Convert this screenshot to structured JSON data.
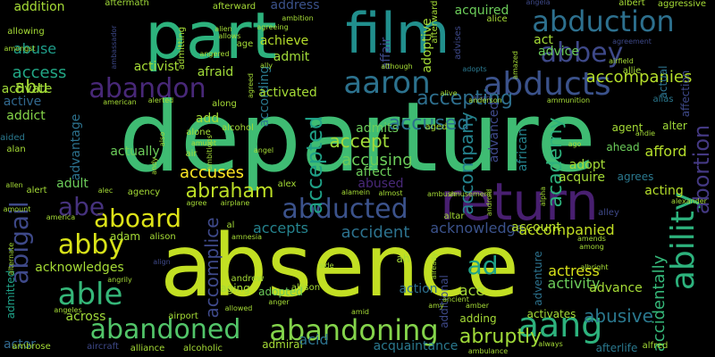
{
  "words": [
    {
      "text": "departure",
      "color": "#3fbc73"
    },
    {
      "text": "absence",
      "color": "#c2df23"
    },
    {
      "text": "film",
      "color": "#218f8d"
    },
    {
      "text": "part",
      "color": "#2db27d"
    },
    {
      "text": "return",
      "color": "#481f70"
    },
    {
      "text": "abduction",
      "color": "#2d708e"
    },
    {
      "text": "ability",
      "color": "#2db27d"
    },
    {
      "text": "abducts",
      "color": "#3b528b"
    },
    {
      "text": "abandon",
      "color": "#482878"
    },
    {
      "text": "abandoning",
      "color": "#84d44b"
    },
    {
      "text": "abandoned",
      "color": "#52c569"
    },
    {
      "text": "aaron",
      "color": "#2c728e"
    },
    {
      "text": "abbey",
      "color": "#3e4989"
    },
    {
      "text": "abducted",
      "color": "#3b528b"
    },
    {
      "text": "aang",
      "color": "#2db27d"
    },
    {
      "text": "abby",
      "color": "#d8e219"
    },
    {
      "text": "able",
      "color": "#35b779"
    },
    {
      "text": "abortion",
      "color": "#443983"
    },
    {
      "text": "abigail",
      "color": "#3e4989"
    },
    {
      "text": "aboard",
      "color": "#dde318"
    },
    {
      "text": "abe",
      "color": "#46327e"
    },
    {
      "text": "abraham",
      "color": "#bddf26"
    },
    {
      "text": "accepted",
      "color": "#1fa187"
    },
    {
      "text": "accept",
      "color": "#a0da39"
    },
    {
      "text": "accusing",
      "color": "#6ccd5a"
    },
    {
      "text": "accused",
      "color": "#2c728e"
    },
    {
      "text": "accepting",
      "color": "#2e6f8e"
    },
    {
      "text": "academy",
      "color": "#2db27d"
    },
    {
      "text": "accompany",
      "color": "#25838e"
    },
    {
      "text": "accompanies",
      "color": "#b5de2b"
    },
    {
      "text": "abuse",
      "color": "#1e9c89"
    },
    {
      "text": "access",
      "color": "#22a785"
    },
    {
      "text": "abu",
      "color": "#a5db36"
    },
    {
      "text": "abruptly",
      "color": "#a0da39"
    },
    {
      "text": "abusive",
      "color": "#2a788e"
    },
    {
      "text": "accidentally",
      "color": "#35b779"
    },
    {
      "text": "acquaintance",
      "color": "#2a788e"
    },
    {
      "text": "accomplice",
      "color": "#3e4989"
    },
    {
      "text": "acknowledge",
      "color": "#3b528b"
    },
    {
      "text": "accompanied",
      "color": "#c2df23"
    },
    {
      "text": "account",
      "color": "#b5de2b"
    },
    {
      "text": "accident",
      "color": "#2c728e"
    },
    {
      "text": "accepts",
      "color": "#25838e"
    },
    {
      "text": "abused",
      "color": "#482878"
    },
    {
      "text": "accuses",
      "color": "#fde725"
    },
    {
      "text": "actress",
      "color": "#d8e219"
    },
    {
      "text": "activity",
      "color": "#6ccd5a"
    },
    {
      "text": "advance",
      "color": "#a5db36"
    },
    {
      "text": "action",
      "color": "#2e6f8e"
    },
    {
      "text": "ace",
      "color": "#a5db36"
    },
    {
      "text": "ad",
      "color": "#1fa187"
    },
    {
      "text": "act",
      "color": "#a5db36"
    },
    {
      "text": "advice",
      "color": "#6ccd5a"
    },
    {
      "text": "addition",
      "color": "#a5db36"
    },
    {
      "text": "address",
      "color": "#3b528b"
    },
    {
      "text": "achieve",
      "color": "#b5de2b"
    },
    {
      "text": "admit",
      "color": "#a0da39"
    },
    {
      "text": "activate",
      "color": "#a0da39"
    },
    {
      "text": "active",
      "color": "#31688e"
    },
    {
      "text": "addict",
      "color": "#86d549"
    },
    {
      "text": "activist",
      "color": "#a5db36"
    },
    {
      "text": "afraid",
      "color": "#a0da39"
    },
    {
      "text": "according",
      "color": "#2a788e"
    },
    {
      "text": "activated",
      "color": "#a5db36"
    },
    {
      "text": "acquired",
      "color": "#6ccd5a"
    },
    {
      "text": "adoptive",
      "color": "#a5db36"
    },
    {
      "text": "affair",
      "color": "#3e4989"
    },
    {
      "text": "affect",
      "color": "#6ccd5a"
    },
    {
      "text": "adopt",
      "color": "#a5db36"
    },
    {
      "text": "acquire",
      "color": "#a5db36"
    },
    {
      "text": "afford",
      "color": "#b5de2b"
    },
    {
      "text": "acting",
      "color": "#b5de2b"
    },
    {
      "text": "adult",
      "color": "#6ccd5a"
    },
    {
      "text": "actually",
      "color": "#6ccd5a"
    },
    {
      "text": "advantage",
      "color": "#2c728e"
    },
    {
      "text": "add",
      "color": "#a5db36"
    },
    {
      "text": "admits",
      "color": "#6ccd5a"
    },
    {
      "text": "advanced",
      "color": "#3e4989"
    },
    {
      "text": "african",
      "color": "#25838e"
    },
    {
      "text": "agent",
      "color": "#a5db36"
    },
    {
      "text": "alter",
      "color": "#a0da39"
    },
    {
      "text": "ahead",
      "color": "#6ccd5a"
    },
    {
      "text": "agrees",
      "color": "#2a788e"
    },
    {
      "text": "adam",
      "color": "#a5db36"
    },
    {
      "text": "acknowledges",
      "color": "#a5db36"
    },
    {
      "text": "across",
      "color": "#a0da39"
    },
    {
      "text": "actor",
      "color": "#31688e"
    },
    {
      "text": "adopted",
      "color": "#6ccd5a"
    },
    {
      "text": "admiral",
      "color": "#a5db36"
    },
    {
      "text": "acid",
      "color": "#2c728e"
    },
    {
      "text": "adding",
      "color": "#a5db36"
    },
    {
      "text": "activates",
      "color": "#a5db36"
    },
    {
      "text": "afterlife",
      "color": "#2a788e"
    },
    {
      "text": "adventure",
      "color": "#2c728e"
    },
    {
      "text": "additional",
      "color": "#3e4989"
    },
    {
      "text": "ah",
      "color": "#a5db36"
    },
    {
      "text": "aging",
      "color": "#a5db36"
    },
    {
      "text": "andrew",
      "color": "#a5db36"
    },
    {
      "text": "admitted",
      "color": "#1fa187"
    },
    {
      "text": "aftermath",
      "color": "#a0da39"
    },
    {
      "text": "afterward",
      "color": "#a5db36"
    },
    {
      "text": "ambition",
      "color": "#a5db36"
    },
    {
      "text": "afterwards",
      "color": "#a5db36"
    },
    {
      "text": "advises",
      "color": "#3e4989"
    },
    {
      "text": "alice",
      "color": "#a5db36"
    },
    {
      "text": "angela",
      "color": "#3e4989"
    },
    {
      "text": "albert",
      "color": "#a5db36"
    },
    {
      "text": "aggressive",
      "color": "#a5db36"
    },
    {
      "text": "allowing",
      "color": "#a5db36"
    },
    {
      "text": "amongst",
      "color": "#a5db36"
    },
    {
      "text": "alien",
      "color": "#a5db36"
    },
    {
      "text": "allows",
      "color": "#a5db36"
    },
    {
      "text": "ambassador",
      "color": "#3e4989"
    },
    {
      "text": "admitting",
      "color": "#a5db36"
    },
    {
      "text": "age",
      "color": "#a5db36"
    },
    {
      "text": "agreeing",
      "color": "#a5db36"
    },
    {
      "text": "although",
      "color": "#a5db36"
    },
    {
      "text": "adopts",
      "color": "#2a788e"
    },
    {
      "text": "agreement",
      "color": "#3e4989"
    },
    {
      "text": "allie",
      "color": "#a5db36"
    },
    {
      "text": "affection",
      "color": "#3e4989"
    },
    {
      "text": "actual",
      "color": "#2c728e"
    },
    {
      "text": "alias",
      "color": "#2a788e"
    },
    {
      "text": "ally",
      "color": "#a5db36"
    },
    {
      "text": "alive",
      "color": "#a5db36"
    },
    {
      "text": "alarm",
      "color": "#3e4989"
    },
    {
      "text": "american",
      "color": "#a5db36"
    },
    {
      "text": "alerted",
      "color": "#a5db36"
    },
    {
      "text": "along",
      "color": "#a5db36"
    },
    {
      "text": "anderson",
      "color": "#a5db36"
    },
    {
      "text": "ammunition",
      "color": "#a5db36"
    },
    {
      "text": "alcohol",
      "color": "#a5db36"
    },
    {
      "text": "alone",
      "color": "#a5db36"
    },
    {
      "text": "amulet",
      "color": "#a5db36"
    },
    {
      "text": "aged",
      "color": "#a5db36"
    },
    {
      "text": "angel",
      "color": "#a5db36"
    },
    {
      "text": "aided",
      "color": "#2a788e"
    },
    {
      "text": "alan",
      "color": "#a5db36"
    },
    {
      "text": "air",
      "color": "#a5db36"
    },
    {
      "text": "andie",
      "color": "#a5db36"
    },
    {
      "text": "ago",
      "color": "#a5db36"
    },
    {
      "text": "alex",
      "color": "#a5db36"
    },
    {
      "text": "allen",
      "color": "#a5db36"
    },
    {
      "text": "alert",
      "color": "#a5db36"
    },
    {
      "text": "alec",
      "color": "#a5db36"
    },
    {
      "text": "agency",
      "color": "#a5db36"
    },
    {
      "text": "alamein",
      "color": "#a5db36"
    },
    {
      "text": "almost",
      "color": "#a5db36"
    },
    {
      "text": "ambush",
      "color": "#a5db36"
    },
    {
      "text": "amusement",
      "color": "#a5db36"
    },
    {
      "text": "agree",
      "color": "#a5db36"
    },
    {
      "text": "airplane",
      "color": "#a5db36"
    },
    {
      "text": "altar",
      "color": "#a5db36"
    },
    {
      "text": "alley",
      "color": "#3e4989"
    },
    {
      "text": "alexander",
      "color": "#a5db36"
    },
    {
      "text": "amount",
      "color": "#a5db36"
    },
    {
      "text": "america",
      "color": "#a5db36"
    },
    {
      "text": "alison",
      "color": "#a5db36"
    },
    {
      "text": "amnesia",
      "color": "#a5db36"
    },
    {
      "text": "amends",
      "color": "#a5db36"
    },
    {
      "text": "among",
      "color": "#a5db36"
    },
    {
      "text": "alternate",
      "color": "#a5db36"
    },
    {
      "text": "align",
      "color": "#3e4989"
    },
    {
      "text": "angrily",
      "color": "#a5db36"
    },
    {
      "text": "aide",
      "color": "#a5db36"
    },
    {
      "text": "albright",
      "color": "#a5db36"
    },
    {
      "text": "allison",
      "color": "#a5db36"
    },
    {
      "text": "anger",
      "color": "#a5db36"
    },
    {
      "text": "angeles",
      "color": "#a5db36"
    },
    {
      "text": "airport",
      "color": "#a5db36"
    },
    {
      "text": "amid",
      "color": "#a5db36"
    },
    {
      "text": "amy",
      "color": "#a5db36"
    },
    {
      "text": "ancient",
      "color": "#a5db36"
    },
    {
      "text": "amber",
      "color": "#a5db36"
    },
    {
      "text": "ambrose",
      "color": "#a5db36"
    },
    {
      "text": "aircraft",
      "color": "#3e4989"
    },
    {
      "text": "alliance",
      "color": "#a5db36"
    },
    {
      "text": "alcoholic",
      "color": "#a5db36"
    },
    {
      "text": "allowed",
      "color": "#a5db36"
    },
    {
      "text": "always",
      "color": "#a5db36"
    },
    {
      "text": "ambulance",
      "color": "#a5db36"
    },
    {
      "text": "alfred",
      "color": "#a5db36"
    },
    {
      "text": "also",
      "color": "#a5db36"
    },
    {
      "text": "ambitious",
      "color": "#a5db36"
    },
    {
      "text": "already",
      "color": "#a5db36"
    },
    {
      "text": "android",
      "color": "#a5db36"
    },
    {
      "text": "alpha",
      "color": "#a5db36"
    },
    {
      "text": "amazed",
      "color": "#a5db36"
    },
    {
      "text": "angered",
      "color": "#a5db36"
    },
    {
      "text": "agreed",
      "color": "#a5db36"
    },
    {
      "text": "airfield",
      "color": "#a5db36"
    },
    {
      "text": "al",
      "color": "#a5db36"
    },
    {
      "text": "andy",
      "color": "#a5db36"
    }
  ]
}
